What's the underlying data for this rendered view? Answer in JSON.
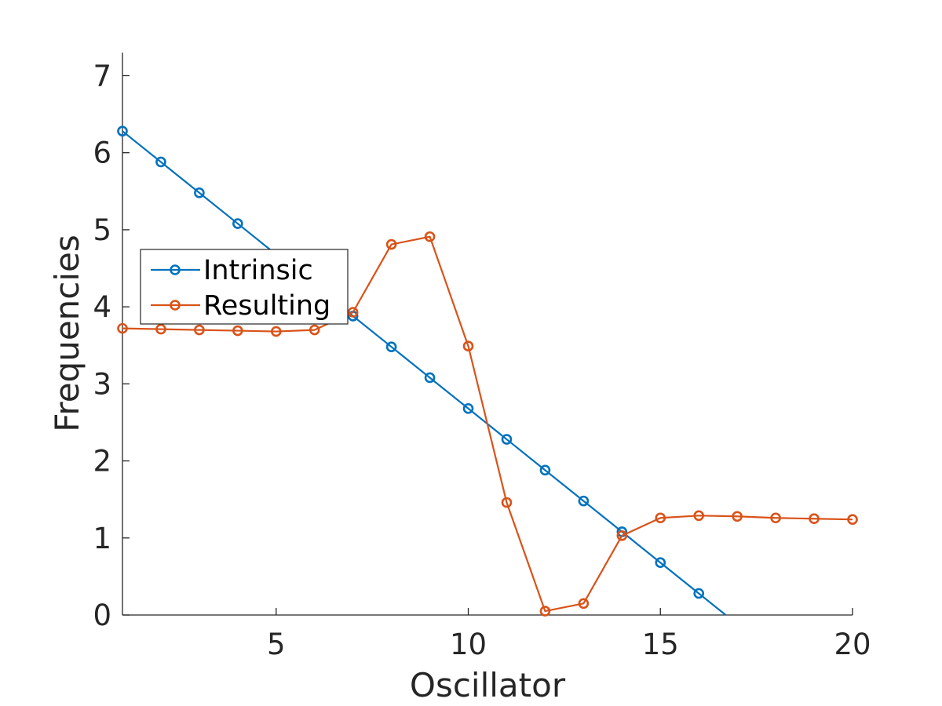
{
  "chart_data": {
    "type": "line",
    "xlabel": "Oscillator",
    "ylabel": "Frequencies",
    "xlim": [
      1,
      20
    ],
    "ylim": [
      0,
      7.3
    ],
    "xticks": [
      5,
      10,
      15,
      20
    ],
    "yticks": [
      0,
      1,
      2,
      3,
      4,
      5,
      6,
      7
    ],
    "grid": false,
    "legend_position": "middle-left",
    "series": [
      {
        "name": "Intrinsic",
        "color": "#0072BD",
        "marker": "circle",
        "x": [
          1,
          2,
          3,
          4,
          5,
          6,
          7,
          8,
          9,
          10,
          11,
          12,
          13,
          14,
          15,
          16,
          16.7
        ],
        "y": [
          6.28,
          5.88,
          5.48,
          5.08,
          4.68,
          4.28,
          3.88,
          3.48,
          3.08,
          2.68,
          2.28,
          1.88,
          1.48,
          1.08,
          0.68,
          0.28,
          0.0
        ],
        "marker_count": 16
      },
      {
        "name": "Resulting",
        "color": "#D95319",
        "marker": "circle",
        "x": [
          1,
          2,
          3,
          4,
          5,
          6,
          7,
          8,
          9,
          10,
          11,
          12,
          13,
          14,
          15,
          16,
          17,
          18,
          19,
          20
        ],
        "y": [
          3.72,
          3.71,
          3.7,
          3.69,
          3.68,
          3.7,
          3.93,
          4.81,
          4.91,
          3.49,
          1.46,
          0.05,
          0.15,
          1.03,
          1.26,
          1.29,
          1.28,
          1.26,
          1.25,
          1.24
        ]
      }
    ]
  }
}
